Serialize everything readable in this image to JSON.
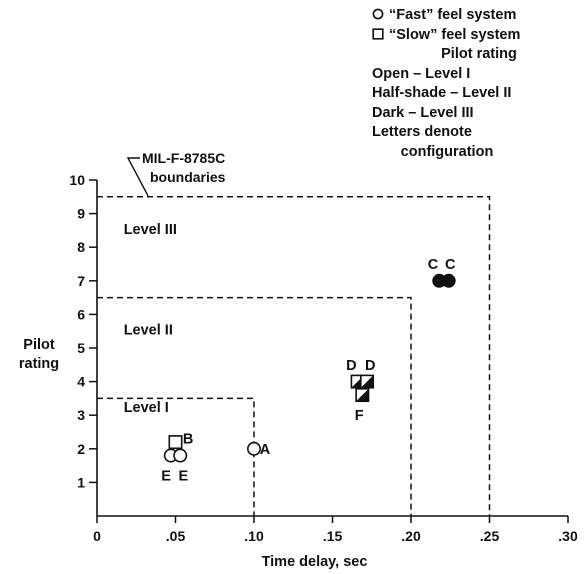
{
  "chart_data": {
    "type": "scatter",
    "xlabel": "Time delay, sec",
    "ylabel": [
      "Pilot",
      "rating"
    ],
    "xlim": [
      0,
      0.3
    ],
    "ylim": [
      0,
      10
    ],
    "x_ticks": [
      0,
      0.05,
      0.1,
      0.15,
      0.2,
      0.25,
      0.3
    ],
    "x_tick_labels": [
      "0",
      ".05",
      ".10",
      ".15",
      ".20",
      ".25",
      ".30"
    ],
    "y_ticks": [
      1,
      2,
      3,
      4,
      5,
      6,
      7,
      8,
      9,
      10
    ],
    "y_tick_labels": [
      "1",
      "2",
      "3",
      "4",
      "5",
      "6",
      "7",
      "8",
      "9",
      "10"
    ],
    "grid": false,
    "boundaries": [
      {
        "label": "Level I",
        "max_delay": 0.1,
        "max_rating": 3.5
      },
      {
        "label": "Level II",
        "max_delay": 0.2,
        "max_rating": 6.5
      },
      {
        "label": "Level III",
        "max_delay": 0.25,
        "max_rating": 9.5
      }
    ],
    "boundary_annotation": [
      "MIL-F-8785C",
      "boundaries"
    ],
    "series": [
      {
        "name": "“Fast” feel system",
        "marker": "circle",
        "points": [
          {
            "config": "E",
            "x": 0.047,
            "y": 1.8,
            "shade": "open"
          },
          {
            "config": "E",
            "x": 0.053,
            "y": 1.8,
            "shade": "open"
          },
          {
            "config": "A",
            "x": 0.1,
            "y": 2.0,
            "shade": "open"
          },
          {
            "config": "C",
            "x": 0.218,
            "y": 7.0,
            "shade": "dark"
          },
          {
            "config": "C",
            "x": 0.224,
            "y": 7.0,
            "shade": "dark"
          }
        ]
      },
      {
        "name": "“Slow” feel system",
        "marker": "square",
        "points": [
          {
            "config": "B",
            "x": 0.05,
            "y": 2.2,
            "shade": "open"
          },
          {
            "config": "D",
            "x": 0.166,
            "y": 4.0,
            "shade": "half"
          },
          {
            "config": "D",
            "x": 0.172,
            "y": 4.0,
            "shade": "half"
          },
          {
            "config": "F",
            "x": 0.169,
            "y": 3.6,
            "shade": "half"
          }
        ]
      }
    ],
    "point_labels": [
      {
        "text": "E",
        "x": 0.044,
        "y": 1.2
      },
      {
        "text": "E",
        "x": 0.055,
        "y": 1.2
      },
      {
        "text": "B",
        "x": 0.058,
        "y": 2.3
      },
      {
        "text": "A",
        "x": 0.107,
        "y": 2.0
      },
      {
        "text": "D",
        "x": 0.162,
        "y": 4.5
      },
      {
        "text": "D",
        "x": 0.174,
        "y": 4.5
      },
      {
        "text": "F",
        "x": 0.167,
        "y": 3.0
      },
      {
        "text": "C",
        "x": 0.214,
        "y": 7.5
      },
      {
        "text": "C",
        "x": 0.225,
        "y": 7.5
      }
    ],
    "legend": {
      "fast": "“Fast” feel system",
      "slow": "“Slow” feel system",
      "rating_title": "Pilot rating",
      "open": "Open – Level I",
      "half": "Half-shade – Level II",
      "dark": "Dark – Level III",
      "note1": "Letters denote",
      "note2": "configuration"
    }
  }
}
